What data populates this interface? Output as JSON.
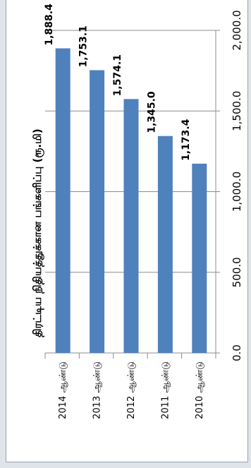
{
  "chart_data": {
    "type": "bar",
    "orientation": "rotated-90-clockwise",
    "title": "திரட்டிய நிதியத்துக்கான பங்களிப்பு (ரூ.மி)",
    "categories": [
      "2014 ஆண்டு",
      "2013 ஆண்டு",
      "2012 ஆண்டு",
      "2011 ஆண்டு",
      "2010 ஆண்டு"
    ],
    "values": [
      1888.4,
      1753.1,
      1574.1,
      1345.0,
      1173.4
    ],
    "value_labels": [
      "1,888.4",
      "1,753.1",
      "1,574.1",
      "1,345.0",
      "1,173.4"
    ],
    "ylim": [
      0,
      2000
    ],
    "y_ticks": [
      0,
      500,
      1000,
      1500,
      2000
    ],
    "y_tick_labels": [
      "0.0",
      "500.0",
      "1,000.0",
      "1,500.0",
      "2,000.0"
    ],
    "grid": true,
    "colors": {
      "bar": "#4f81bd",
      "grid": "#8c8c8c"
    }
  }
}
